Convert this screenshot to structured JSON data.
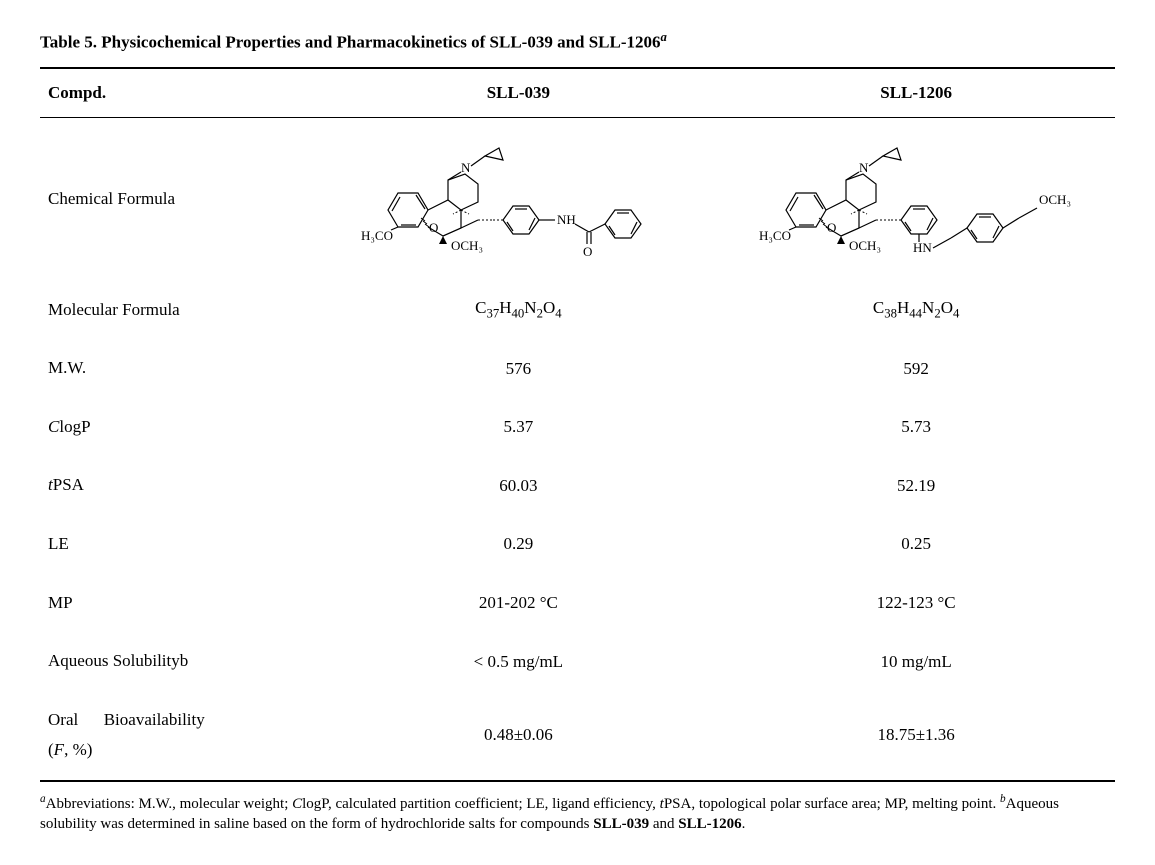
{
  "caption": {
    "lead": "Table 5. Physicochemical Properties and Pharmacokinetics of SLL-039 and SLL-1206",
    "sup": "a"
  },
  "columns": {
    "c0": "Compd.",
    "c1": "SLL-039",
    "c2": "SLL-1206"
  },
  "rows": {
    "chemformula_label": "Chemical Formula",
    "molformula_label": "Molecular Formula",
    "molformula_c1_html": "C<sub>37</sub>H<sub>40</sub>N<sub>2</sub>O<sub>4</sub>",
    "molformula_c2_html": "C<sub>38</sub>H<sub>44</sub>N<sub>2</sub>O<sub>4</sub>",
    "mw_label": "M.W.",
    "mw_c1": "576",
    "mw_c2": "592",
    "clogp_label_html": "<span class=\"ital\">C</span>logP",
    "clogp_c1": "5.37",
    "clogp_c2": "5.73",
    "tpsa_label_html": "<span class=\"ital\">t</span>PSA",
    "tpsa_c1": "60.03",
    "tpsa_c2": "52.19",
    "le_label": "LE",
    "le_c1": "0.29",
    "le_c2": "0.25",
    "mp_label": "MP",
    "mp_c1": "201-202 °C",
    "mp_c2": "122-123 °C",
    "aq_label_html": "Aqueous Solubility<span class=\"sup\">b</span>",
    "aq_c1": "< 0.5 mg/mL",
    "aq_c2": "10 mg/mL",
    "oral_label_html": "Oral&nbsp;&nbsp;&nbsp;&nbsp;&nbsp;&nbsp;Bioavailability<br>(<span class=\"ital\">F</span>, %)",
    "oral_c1": "0.48±0.06",
    "oral_c2": "18.75±1.36"
  },
  "structures": {
    "sll039": {
      "labels": {
        "h3co_left": "H₃CO",
        "och3_mid": "OCH₃",
        "nh": "NH",
        "o_bridge": "O",
        "o_carbonyl": "O",
        "n_amine": "N"
      }
    },
    "sll1206": {
      "labels": {
        "h3co_left": "H₃CO",
        "och3_mid": "OCH₃",
        "och3_right": "OCH₃",
        "hn": "HN",
        "o_bridge": "O",
        "n_amine": "N"
      }
    }
  },
  "footnote_html": "<span class=\"sup\">a</span>Abbreviations: M.W., molecular weight; <span class=\"ital\">C</span>logP, calculated partition coefficient; LE, ligand efficiency, <span class=\"ital\">t</span>PSA, topological polar surface area; MP, melting point. <span class=\"sup\">b</span>Aqueous solubility was determined in saline based on the form of hydrochloride salts for compounds <b>SLL-039</b> and <b>SLL-1206</b>."
}
